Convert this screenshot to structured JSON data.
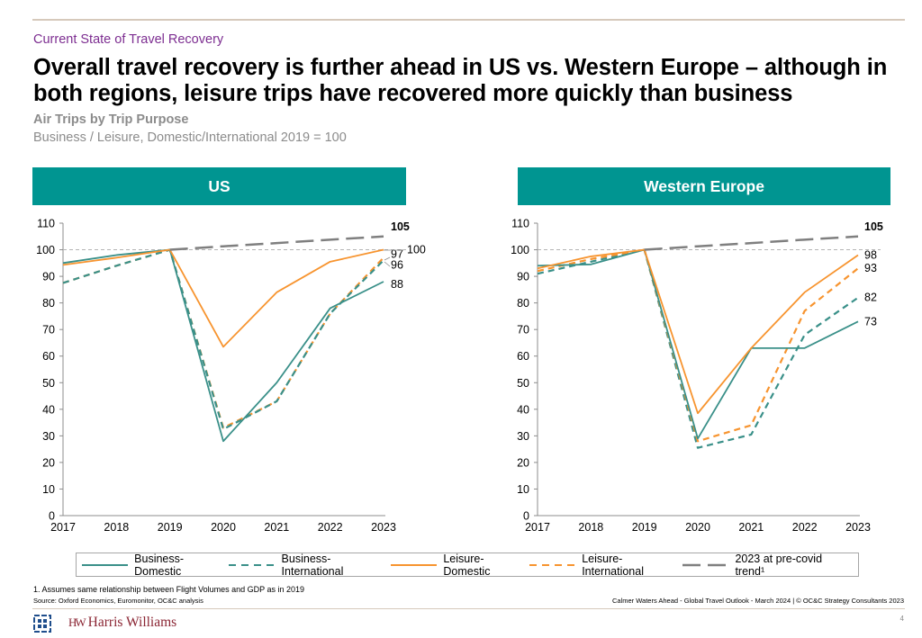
{
  "header": {
    "kicker": "Current State of Travel Recovery",
    "title": "Overall travel recovery is further ahead in US vs. Western Europe – although in both regions, leisure trips have recovered more quickly than business",
    "subtitle": "Air Trips by Trip Purpose",
    "subtitle_note": "Business / Leisure, Domestic/International 2019 = 100"
  },
  "colors": {
    "teal": "#3a9089",
    "orange": "#f7942f",
    "trend_gray": "#7f7f7f",
    "header_teal": "#009591",
    "kicker_purple": "#7d2e91"
  },
  "chart_data": [
    {
      "type": "line",
      "title": "US",
      "categories": [
        "2017",
        "2018",
        "2019",
        "2020",
        "2021",
        "2022",
        "2023"
      ],
      "ylim": [
        0,
        110
      ],
      "yticks": [
        "0",
        "10",
        "20",
        "30",
        "40",
        "50",
        "60",
        "70",
        "80",
        "90",
        "100",
        "110"
      ],
      "reference_line": 100,
      "grid": false,
      "series": [
        {
          "name": "Leisure-International",
          "style": "dashed",
          "color": "orange",
          "values": [
            87.5,
            94,
            100,
            33,
            43,
            76,
            97
          ],
          "end_label": "97"
        },
        {
          "name": "Business-International",
          "style": "dashed",
          "color": "teal",
          "values": [
            87.5,
            94,
            100,
            32.5,
            43,
            76,
            96
          ],
          "end_label": "96"
        },
        {
          "name": "Business-Domestic",
          "style": "solid",
          "color": "teal",
          "values": [
            95,
            98,
            100,
            28,
            50,
            78,
            88
          ],
          "end_label": "88"
        },
        {
          "name": "Leisure-Domestic",
          "style": "solid",
          "color": "orange",
          "values": [
            94.3,
            97,
            100,
            63.5,
            84,
            95.5,
            100
          ],
          "end_label": "100"
        },
        {
          "name": "2023 at pre-covid trend",
          "style": "longdash",
          "color": "gray",
          "x_start": "2019",
          "values": [
            null,
            null,
            100,
            101.3,
            102.5,
            103.8,
            105
          ],
          "end_label": "105"
        }
      ]
    },
    {
      "type": "line",
      "title": "Western Europe",
      "categories": [
        "2017",
        "2018",
        "2019",
        "2020",
        "2021",
        "2022",
        "2023"
      ],
      "ylim": [
        0,
        110
      ],
      "yticks": [
        "0",
        "10",
        "20",
        "30",
        "40",
        "50",
        "60",
        "70",
        "80",
        "90",
        "100",
        "110"
      ],
      "reference_line": 100,
      "grid": false,
      "series": [
        {
          "name": "Business-International",
          "style": "dashed",
          "color": "teal",
          "values": [
            91,
            95.5,
            100,
            25.5,
            30.5,
            68,
            82
          ],
          "end_label": "82"
        },
        {
          "name": "Leisure-International",
          "style": "dashed",
          "color": "orange",
          "values": [
            92,
            96.5,
            100,
            28,
            34,
            77,
            93
          ],
          "end_label": "93"
        },
        {
          "name": "Business-Domestic",
          "style": "solid",
          "color": "teal",
          "values": [
            94,
            94.5,
            100,
            29,
            63,
            63,
            73
          ],
          "end_label": "73"
        },
        {
          "name": "Leisure-Domestic",
          "style": "solid",
          "color": "orange",
          "values": [
            93,
            97.5,
            100,
            38.5,
            63,
            84,
            98
          ],
          "end_label": "98"
        },
        {
          "name": "2023 at pre-covid trend",
          "style": "longdash",
          "color": "gray",
          "x_start": "2019",
          "values": [
            null,
            null,
            100,
            101.3,
            102.5,
            103.8,
            105
          ],
          "end_label": "105"
        }
      ]
    }
  ],
  "legend": [
    {
      "label": "Business-Domestic",
      "style": "solid",
      "color": "teal"
    },
    {
      "label": "Business-International",
      "style": "dashed",
      "color": "teal"
    },
    {
      "label": "Leisure-Domestic",
      "style": "solid",
      "color": "orange"
    },
    {
      "label": "Leisure-International",
      "style": "dashed",
      "color": "orange"
    },
    {
      "label": "2023 at pre-covid trend¹",
      "style": "longdash",
      "color": "gray"
    }
  ],
  "footer": {
    "footnote": "1. Assumes same relationship between Flight Volumes and GDP as in 2019",
    "source": "Source: Oxford Economics, Euromonitor, OC&C analysis",
    "right": "Calmer Waters Ahead - Global Travel Outlook - March 2024  | © OC&C Strategy Consultants 2023",
    "page_number": "4",
    "logo_text": "Harris Williams",
    "logo_mark": "HW"
  }
}
